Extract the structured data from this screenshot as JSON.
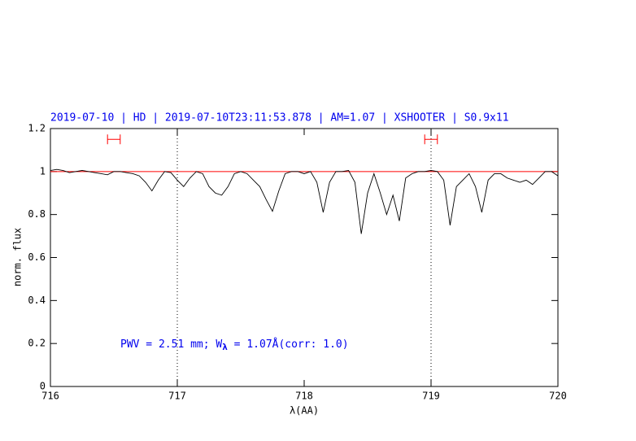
{
  "chart_data": {
    "type": "line",
    "title": "2019-07-10 | HD | 2019-07-10T23:11:53.878 | AM=1.07 | XSHOOTER | S0.9x11",
    "x_label": "λ(AA)",
    "y_label": "norm. flux",
    "annotation": {
      "prefix": "PWV = 2.51 mm; W",
      "subscript": "λ",
      "suffix": " = 1.07Å(corr: 1.0)",
      "color": "#0000ee"
    },
    "x": [
      716.0,
      716.05,
      716.1,
      716.15,
      716.2,
      716.25,
      716.3,
      716.35,
      716.4,
      716.45,
      716.5,
      716.55,
      716.6,
      716.65,
      716.7,
      716.75,
      716.8,
      716.85,
      716.9,
      716.95,
      717.0,
      717.05,
      717.1,
      717.15,
      717.2,
      717.25,
      717.3,
      717.35,
      717.4,
      717.45,
      717.5,
      717.55,
      717.6,
      717.65,
      717.7,
      717.75,
      717.8,
      717.85,
      717.9,
      717.95,
      718.0,
      718.05,
      718.1,
      718.15,
      718.2,
      718.25,
      718.3,
      718.35,
      718.4,
      718.45,
      718.5,
      718.55,
      718.6,
      718.65,
      718.7,
      718.75,
      718.8,
      718.85,
      718.9,
      718.95,
      719.0,
      719.05,
      719.1,
      719.15,
      719.2,
      719.25,
      719.3,
      719.35,
      719.4,
      719.45,
      719.5,
      719.55,
      719.6,
      719.65,
      719.7,
      719.75,
      719.8,
      719.85,
      719.9,
      719.95,
      720.0
    ],
    "series": [
      {
        "color": "#000000",
        "values": [
          1.005,
          1.01,
          1.005,
          0.995,
          1.0,
          1.005,
          1.0,
          0.995,
          0.99,
          0.985,
          1.0,
          1.0,
          0.995,
          0.99,
          0.98,
          0.95,
          0.91,
          0.96,
          1.0,
          0.995,
          0.96,
          0.93,
          0.97,
          1.0,
          0.99,
          0.93,
          0.9,
          0.89,
          0.93,
          0.99,
          1.0,
          0.99,
          0.96,
          0.93,
          0.87,
          0.815,
          0.91,
          0.99,
          1.0,
          1.0,
          0.99,
          1.0,
          0.95,
          0.81,
          0.95,
          1.0,
          1.0,
          1.005,
          0.95,
          0.71,
          0.9,
          0.99,
          0.9,
          0.8,
          0.89,
          0.77,
          0.97,
          0.99,
          1.0,
          1.0,
          1.005,
          1.0,
          0.96,
          0.75,
          0.93,
          0.96,
          0.99,
          0.93,
          0.81,
          0.96,
          0.99,
          0.99,
          0.97,
          0.96,
          0.95,
          0.96,
          0.94,
          0.97,
          1.0,
          1.0,
          0.98
        ]
      }
    ],
    "reference_line": {
      "value": 1,
      "color": "#ff0000"
    },
    "windows": {
      "y": 1.15,
      "color": "#ff0000",
      "ranges": [
        [
          716.45,
          716.55
        ],
        [
          718.95,
          719.05
        ]
      ]
    },
    "vlines": [
      717,
      719
    ],
    "xlim": [
      716,
      720
    ],
    "xticks": [
      716,
      717,
      718,
      719,
      720
    ],
    "ylim": [
      0,
      1.2
    ],
    "yticks": [
      0,
      0.2,
      0.4,
      0.6,
      0.8,
      1,
      1.2
    ]
  }
}
